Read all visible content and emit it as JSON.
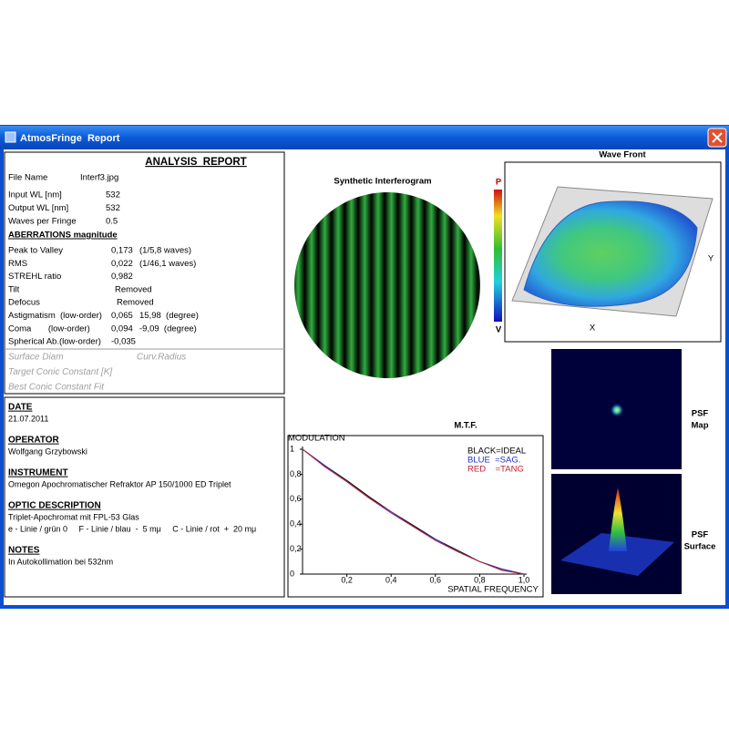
{
  "window": {
    "title": "AtmosFringe  Report"
  },
  "report": {
    "title": "ANALYSIS  REPORT",
    "file": {
      "label": "File Name",
      "value": "Interf3.jpg"
    },
    "inputs": [
      {
        "label": "Input WL [nm]",
        "value": "532"
      },
      {
        "label": "Output WL [nm]",
        "value": "532"
      },
      {
        "label": "Waves per Fringe",
        "value": "0.5"
      }
    ],
    "aberrations_title": "ABERRATIONS magnitude",
    "aberrations": [
      {
        "label": "Peak to Valley",
        "value": "0,173",
        "extra": "(1/5,8 waves)"
      },
      {
        "label": "RMS",
        "value": "0,022",
        "extra": "(1/46,1 waves)"
      },
      {
        "label": "STREHL ratio",
        "value": "0,982"
      },
      {
        "label": "Tilt",
        "value": "Removed"
      },
      {
        "label": "Defocus",
        "value": "Removed"
      },
      {
        "label": "Astigmatism  (low-order)",
        "value": "0,065",
        "extra": "15,98  (degree)"
      },
      {
        "label": "Coma       (low-order)",
        "value": "0,094",
        "extra": "-9,09  (degree)"
      },
      {
        "label": "Spherical Ab.(low-order)",
        "value": "-0,035"
      }
    ],
    "disabled": [
      {
        "label": "Surface Diam",
        "value": "Curv.Radius"
      },
      {
        "label": "Target Conic Constant [K]"
      },
      {
        "label": "Best Conic Constant Fit"
      }
    ]
  },
  "notes": [
    {
      "heading": "DATE",
      "lines": [
        "21.07.2011"
      ]
    },
    {
      "heading": "OPERATOR",
      "lines": [
        "Wolfgang Grzybowski"
      ]
    },
    {
      "heading": "INSTRUMENT",
      "lines": [
        "Omegon Apochromatischer Refraktor AP 150/1000 ED Triplet"
      ]
    },
    {
      "heading": "OPTIC DESCRIPTION",
      "lines": [
        "Triplet-Apochromat mit FPL-53 Glas",
        "e - Linie / grün 0     F - Linie / blau  -  5 mμ     C - Linie / rot  +  20 mμ"
      ]
    },
    {
      "heading": "NOTES",
      "lines": [
        "In Autokollimation bei 532nm"
      ]
    }
  ],
  "interferogram": {
    "title": "Synthetic Interferogram",
    "scale_top": "P",
    "scale_bottom": "V"
  },
  "wavefront": {
    "title": "Wave Front",
    "x_label": "X",
    "y_label": "Y"
  },
  "psf": {
    "map_label": [
      "PSF",
      "Map"
    ],
    "surface_label": [
      "PSF",
      "Surface"
    ]
  },
  "mtf": {
    "title": "M.T.F.",
    "y_label": "MODULATION",
    "x_label": "SPATIAL FREQUENCY",
    "xlim": [
      0,
      1
    ],
    "ylim": [
      0,
      1
    ],
    "xticks": [
      {
        "value": 0.2,
        "label": "0,2"
      },
      {
        "value": 0.4,
        "label": "0,4"
      },
      {
        "value": 0.6,
        "label": "0,6"
      },
      {
        "value": 0.8,
        "label": "0,8"
      },
      {
        "value": 1.0,
        "label": "1,0"
      }
    ],
    "yticks": [
      1,
      {
        "value": 0.8,
        "label": "0,8"
      },
      {
        "value": 0.6,
        "label": "0,6"
      },
      {
        "value": 0.4,
        "label": "0,4"
      },
      {
        "value": 0.2,
        "label": "0,2"
      },
      0
    ],
    "x": [
      0,
      0.1,
      0.2,
      0.3,
      0.4,
      0.5,
      0.6,
      0.7,
      0.8,
      0.9,
      1.0
    ],
    "series": [
      {
        "name": "BLACK=IDEAL",
        "color": "#000000",
        "values": [
          1,
          0.87,
          0.75,
          0.62,
          0.5,
          0.39,
          0.28,
          0.19,
          0.1,
          0.04,
          0
        ]
      },
      {
        "name": "BLUE  =SAG.",
        "color": "#1f2fd0",
        "values": [
          1,
          0.87,
          0.74,
          0.61,
          0.49,
          0.38,
          0.28,
          0.18,
          0.1,
          0.04,
          0
        ]
      },
      {
        "name": "RED    =TANG",
        "color": "#c02030",
        "values": [
          1,
          0.86,
          0.74,
          0.61,
          0.5,
          0.38,
          0.27,
          0.18,
          0.1,
          0.03,
          0
        ]
      }
    ]
  }
}
